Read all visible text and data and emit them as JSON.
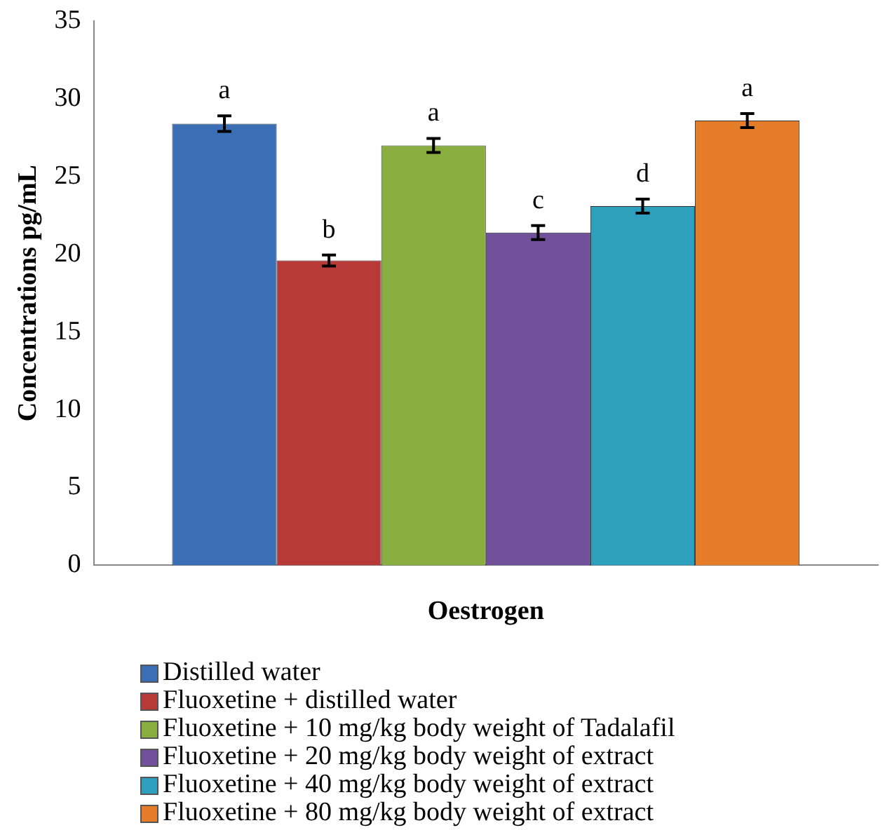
{
  "chart_data": {
    "type": "bar",
    "ylabel": "Concentrations pg/mL",
    "categories": [
      "Oestrogen"
    ],
    "series": [
      {
        "name": "Distilled water",
        "color": "#3a6fb5",
        "values": [
          28.4
        ],
        "errors": [
          0.5
        ]
      },
      {
        "name": "Fluoxetine + distilled water",
        "color": "#b83a38",
        "values": [
          19.6
        ],
        "errors": [
          0.35
        ]
      },
      {
        "name": "Fluoxetine + 10 mg/kg body weight of Tadalafil",
        "color": "#8aad3f",
        "values": [
          27.0
        ],
        "errors": [
          0.45
        ]
      },
      {
        "name": "Fluoxetine + 20 mg/kg body weight of extract",
        "color": "#70519a",
        "values": [
          21.4
        ],
        "errors": [
          0.45
        ]
      },
      {
        "name": "Fluoxetine + 40 mg/kg body weight of extract",
        "color": "#2f9fbe",
        "values": [
          23.1
        ],
        "errors": [
          0.45
        ]
      },
      {
        "name": "Fluoxetine + 80 mg/kg body weight of extract",
        "color": "#e57c27",
        "values": [
          28.6
        ],
        "errors": [
          0.45
        ]
      }
    ],
    "annotations": [
      "a",
      "b",
      "a",
      "c",
      "d",
      "a"
    ],
    "ylim": [
      0,
      35
    ],
    "yticks": [
      0,
      5,
      10,
      15,
      20,
      25,
      30,
      35
    ],
    "grid": false,
    "legend": "bottom"
  }
}
